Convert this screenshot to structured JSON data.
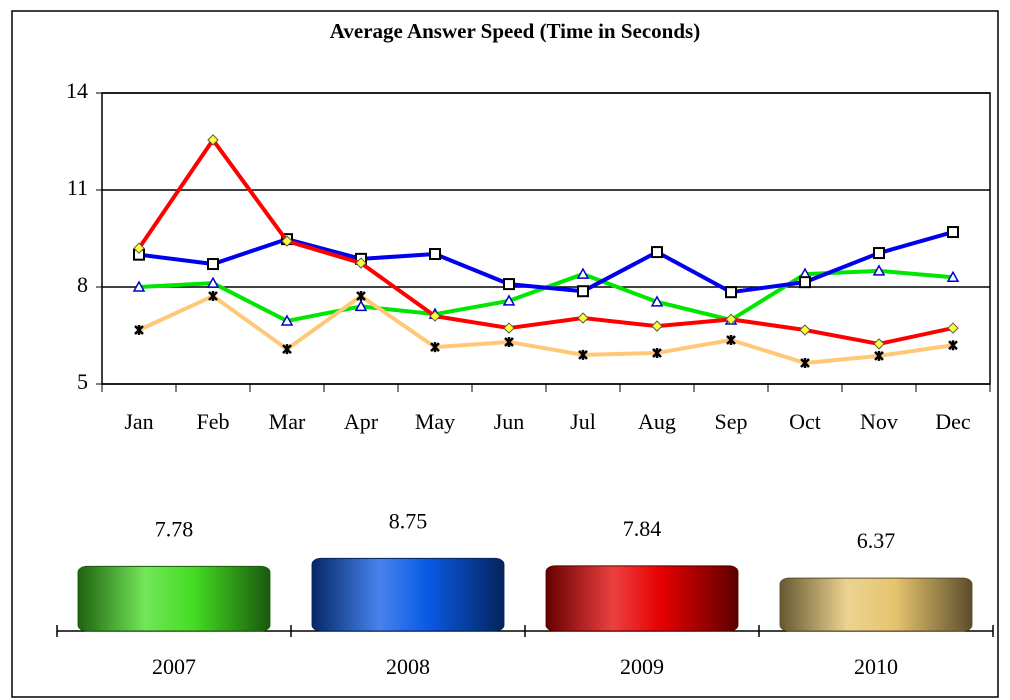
{
  "chart_data": [
    {
      "type": "line",
      "title": "Average Answer Speed (Time in Seconds)",
      "categories": [
        "Jan",
        "Feb",
        "Mar",
        "Apr",
        "May",
        "Jun",
        "Jul",
        "Aug",
        "Sep",
        "Oct",
        "Nov",
        "Dec"
      ],
      "series": [
        {
          "color": "#00e600",
          "marker": "triangle",
          "values": [
            8.0,
            8.12,
            6.95,
            7.4,
            7.16,
            7.57,
            8.4,
            7.54,
            6.98,
            8.4,
            8.5,
            8.3
          ]
        },
        {
          "color": "#0000ee",
          "marker": "square",
          "values": [
            9.0,
            8.71,
            9.48,
            8.87,
            9.02,
            8.09,
            7.87,
            9.08,
            7.84,
            8.15,
            9.05,
            9.7
          ]
        },
        {
          "color": "#ff0000",
          "marker": "diamond",
          "values": [
            9.2,
            12.55,
            9.42,
            8.74,
            7.1,
            6.73,
            7.04,
            6.79,
            7.0,
            6.67,
            6.24,
            6.73
          ]
        },
        {
          "color": "#ffc878",
          "marker": "star",
          "values": [
            6.67,
            7.72,
            6.08,
            7.72,
            6.14,
            6.3,
            5.9,
            5.96,
            6.36,
            5.65,
            5.87,
            6.2
          ]
        }
      ],
      "ylim": [
        5,
        14
      ],
      "yticks": [
        5,
        8,
        11,
        14
      ],
      "grid": true
    },
    {
      "type": "bar",
      "categories": [
        "2007",
        "2008",
        "2009",
        "2010"
      ],
      "values": [
        7.78,
        8.75,
        7.84,
        6.37
      ],
      "colors": [
        "#44dd22",
        "#0a5ae6",
        "#e60000",
        "#e6c46e"
      ],
      "ylim": [
        0,
        10
      ]
    }
  ]
}
